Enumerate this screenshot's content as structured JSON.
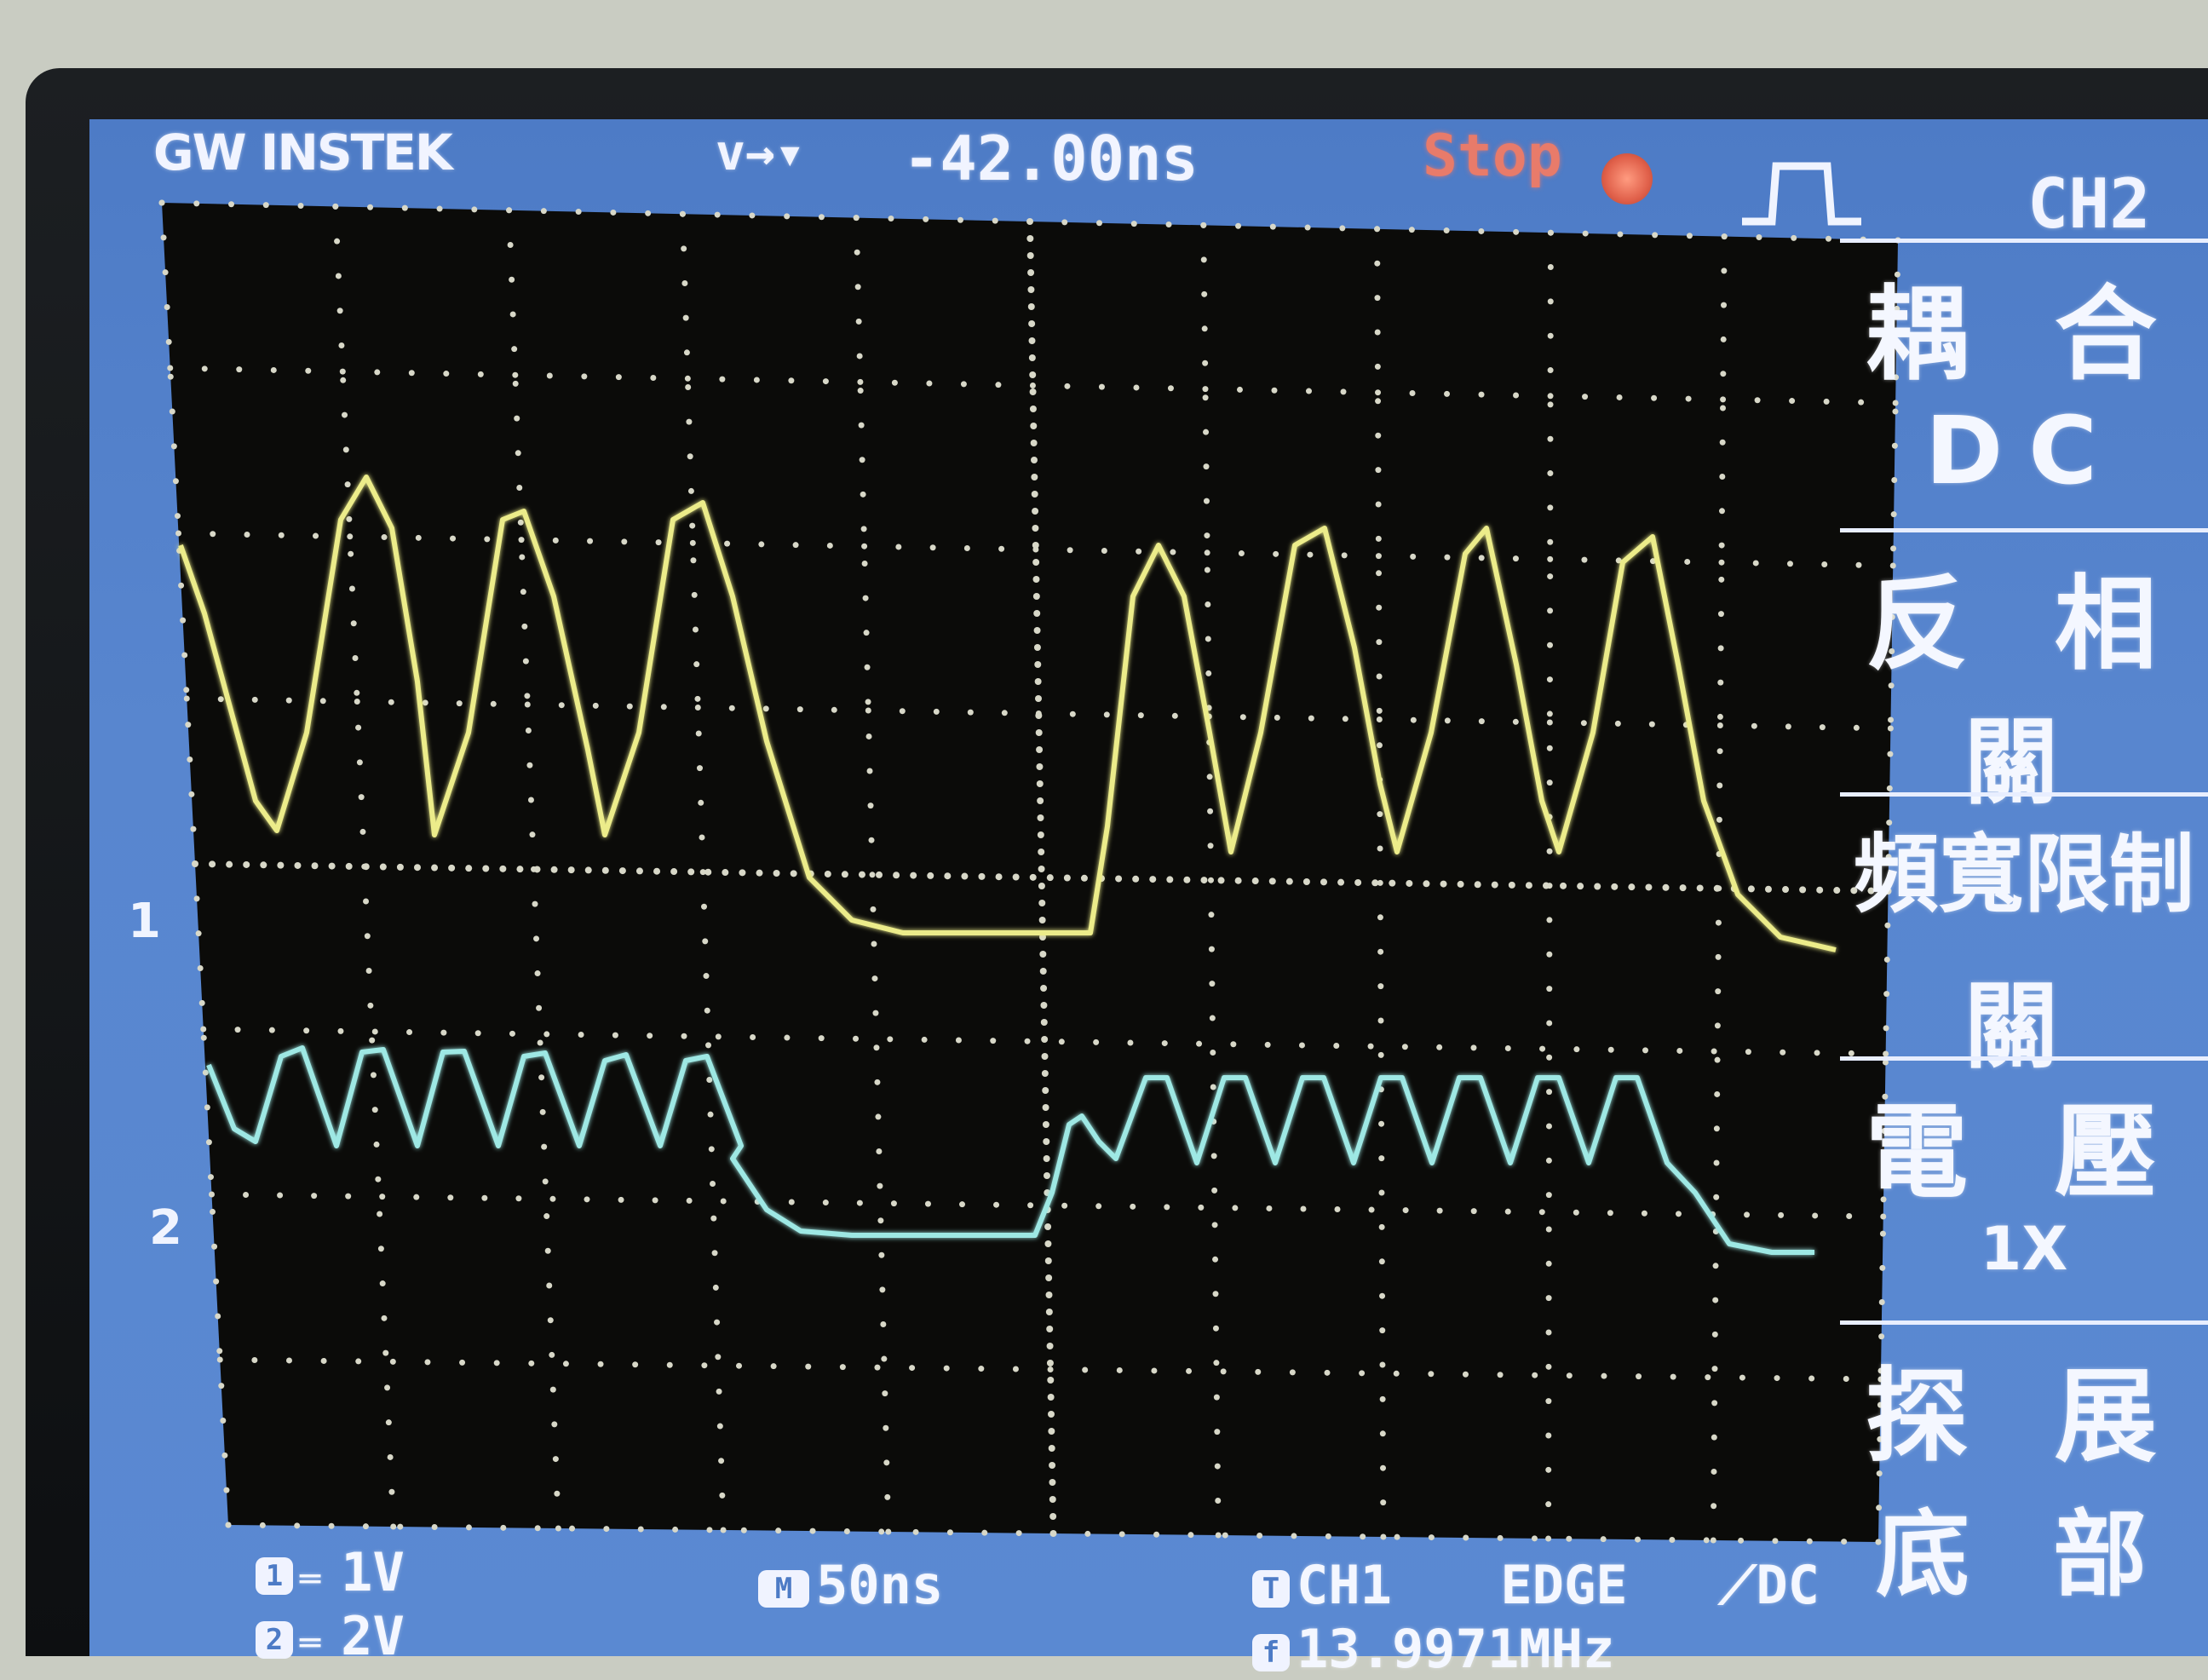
{
  "header": {
    "brand": "GW INSTEK",
    "trigger_markers": "v→▾",
    "time_offset": "-42.00ns",
    "run_status": "Stop",
    "menu_channel": "CH2"
  },
  "side_menu": [
    {
      "title": "耦 合",
      "value": "DC"
    },
    {
      "title": "反 相",
      "value": "關"
    },
    {
      "title": "頻寬限制",
      "value": "關"
    },
    {
      "title": "電 壓",
      "value": "1X"
    },
    {
      "title": "探 展",
      "value": "底 部"
    }
  ],
  "footer": {
    "ch1_badge": "1",
    "ch1_scale": "1V",
    "ch2_badge": "2",
    "ch2_scale": "2V",
    "time_badge": "M",
    "timebase": "50ns",
    "trig_badge": "T",
    "trig_source": "CH1",
    "trig_type": "EDGE",
    "trig_coupling": "DC",
    "freq_badge": "f",
    "frequency": "13.9971MHz"
  },
  "colors": {
    "screen_bg": "#0a0a08",
    "panel_blue": "#5586d0",
    "ch1_trace": "#ecec8a",
    "ch2_trace": "#9ee8e4",
    "grid": "#d8d8c8",
    "stop_text": "#e87b6a"
  },
  "markers": {
    "ch1_ground": "1",
    "ch2_ground": "2"
  }
}
